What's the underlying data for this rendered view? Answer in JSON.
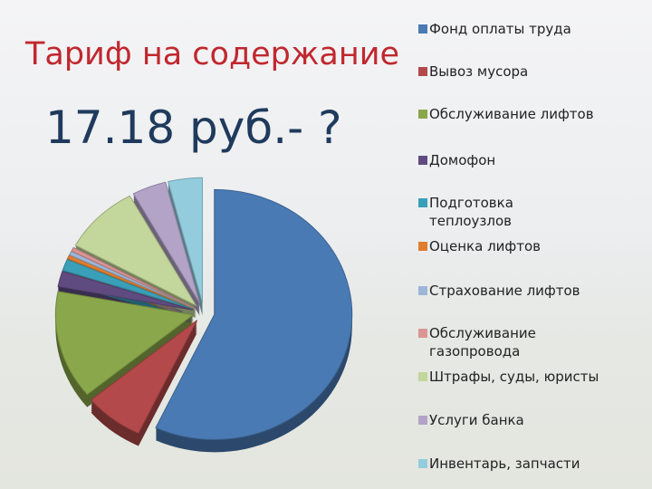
{
  "chart_data": {
    "type": "pie",
    "title": "Тариф на содержание",
    "subtitle": "17.18 руб.- ?",
    "categories": [
      "Фонд оплаты труда",
      "Вывоз мусора",
      "Обслуживание лифтов",
      "Домофон",
      "Подготовка теплоузлов",
      "Оценка лифтов",
      "Страхование лифтов",
      "Обслуживание газопровода",
      "Штрафы, суды, юристы",
      "Услуги банка",
      "Инвентарь, запчасти"
    ],
    "values": [
      57,
      7,
      14,
      2,
      1.5,
      0.5,
      0.5,
      0.5,
      9,
      4,
      4
    ],
    "colors": [
      "#4a7ab4",
      "#b3494a",
      "#8aa84b",
      "#5f4b80",
      "#3a9fb8",
      "#e07d2e",
      "#9cb6d9",
      "#d99695",
      "#c3d69b",
      "#b2a3c7",
      "#93cddd"
    ]
  }
}
